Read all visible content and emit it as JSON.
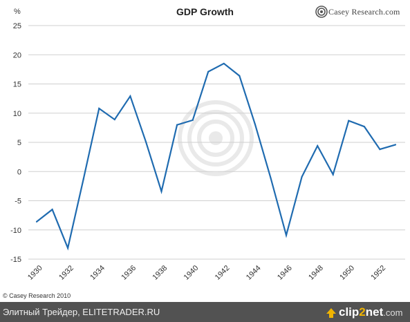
{
  "chart_data": {
    "type": "line",
    "title": "GDP Growth",
    "ylabel": "%",
    "xlabel": "",
    "ylim": [
      -15,
      25
    ],
    "yticks": [
      25,
      20,
      15,
      10,
      5,
      0,
      -5,
      -10,
      -15
    ],
    "xlim": [
      1930,
      1953
    ],
    "xticks": [
      "1930",
      "1932",
      "1934",
      "1936",
      "1938",
      "1940",
      "1942",
      "1944",
      "1946",
      "1948",
      "1950",
      "1952"
    ],
    "grid": true,
    "series": [
      {
        "color": "#1f6bb0",
        "x": [
          1930,
          1931,
          1932,
          1933,
          1934,
          1935,
          1936,
          1937,
          1938,
          1939,
          1940,
          1941,
          1942,
          1943,
          1944,
          1945,
          1946,
          1947,
          1948,
          1949,
          1950,
          1951,
          1952,
          1953
        ],
        "y": [
          -8.6,
          -6.5,
          -13.1,
          -1.3,
          10.8,
          8.9,
          12.9,
          5.1,
          -3.4,
          8.0,
          8.8,
          17.1,
          18.5,
          16.4,
          8.1,
          -1.1,
          -10.9,
          -0.9,
          4.4,
          -0.5,
          8.7,
          7.7,
          3.8,
          4.6
        ]
      }
    ]
  },
  "brand": {
    "name": "Casey Research.com"
  },
  "copyright": "© Casey Research 2010",
  "footer": {
    "left_text": "Элитный Трейдер, ELITETRADER.RU",
    "logo_a": "clip",
    "logo_b": "2",
    "logo_c": "net",
    "logo_d": ".com"
  }
}
